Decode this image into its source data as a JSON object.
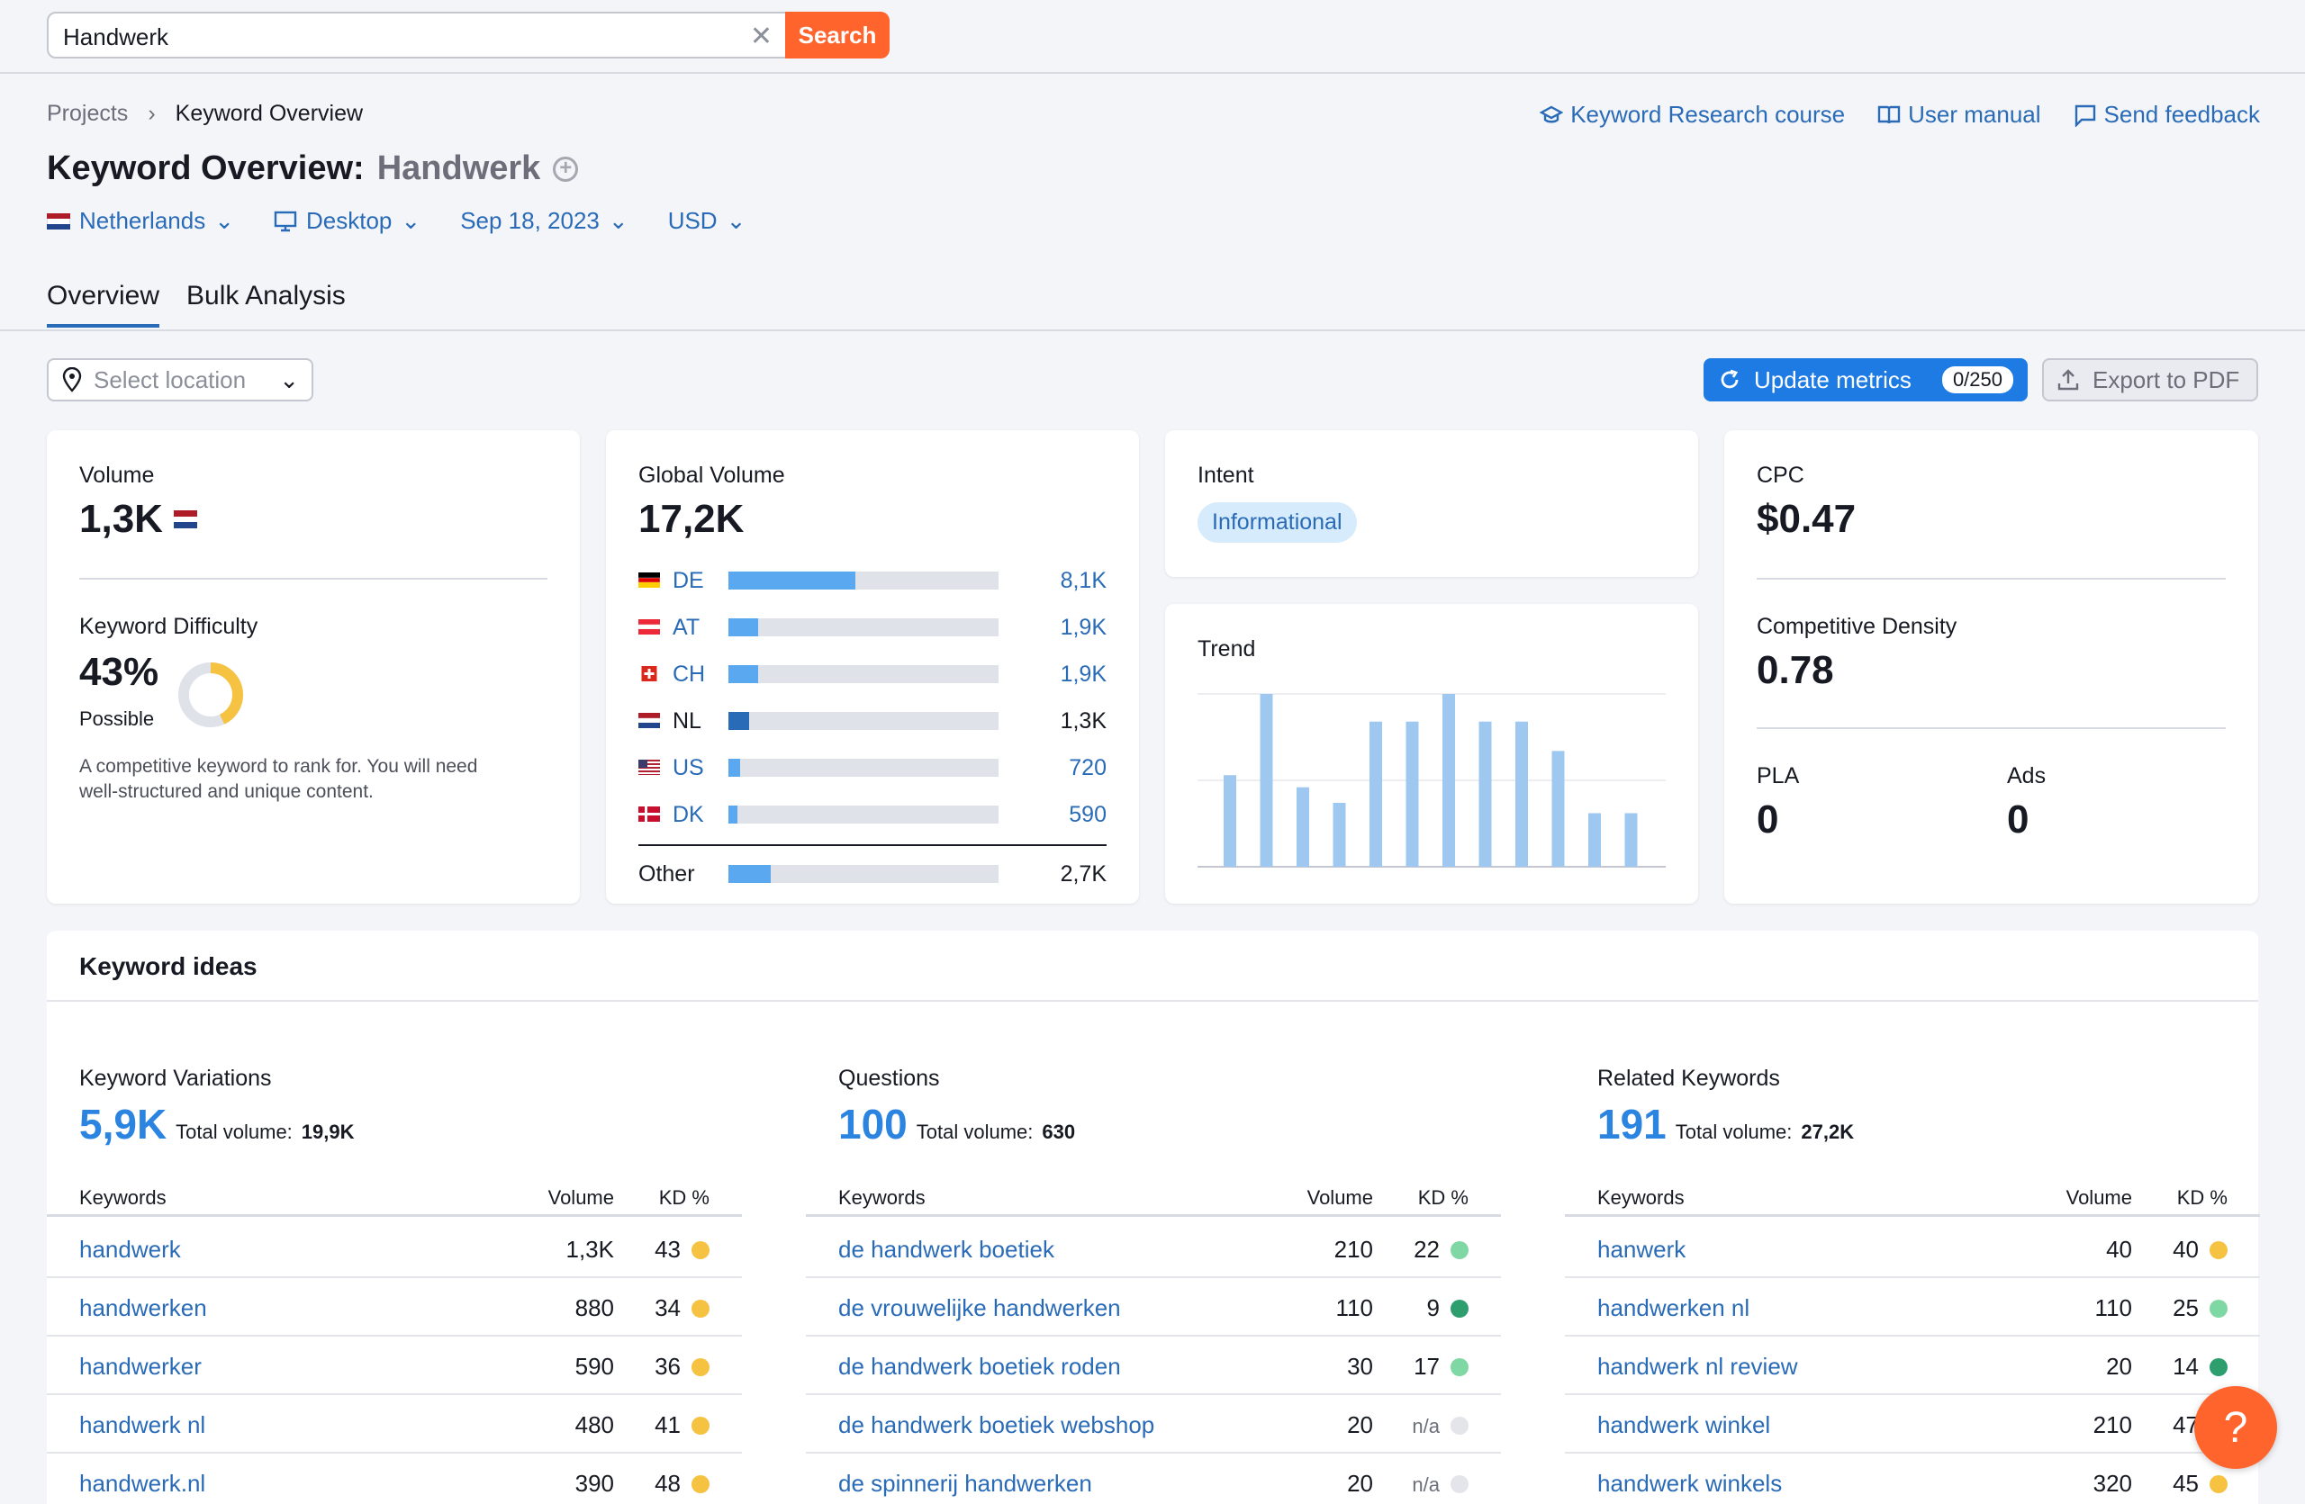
{
  "search": {
    "value": "Handwerk",
    "button": "Search"
  },
  "breadcrumb": {
    "root": "Projects",
    "current": "Keyword Overview"
  },
  "top_links": {
    "course": "Keyword Research course",
    "manual": "User manual",
    "feedback": "Send feedback"
  },
  "title": {
    "prefix": "Keyword Overview:",
    "keyword": "Handwerk"
  },
  "filters": {
    "country": "Netherlands",
    "device": "Desktop",
    "date": "Sep 18, 2023",
    "currency": "USD"
  },
  "tabs": [
    "Overview",
    "Bulk Analysis"
  ],
  "location": {
    "placeholder": "Select location"
  },
  "actions": {
    "update": "Update metrics",
    "update_quota": "0/250",
    "export": "Export to PDF"
  },
  "volume": {
    "label": "Volume",
    "value": "1,3K"
  },
  "difficulty": {
    "label": "Keyword Difficulty",
    "value": "43%",
    "level": "Possible",
    "percent": 43,
    "description_1": "A competitive keyword to rank for. You will need",
    "description_2": "well-structured and unique content."
  },
  "global_volume": {
    "label": "Global Volume",
    "value": "17,2K",
    "rows": [
      {
        "code": "DE",
        "value": "8,1K",
        "share": 0.47,
        "linked": true
      },
      {
        "code": "AT",
        "value": "1,9K",
        "share": 0.11,
        "linked": true
      },
      {
        "code": "CH",
        "value": "1,9K",
        "share": 0.11,
        "linked": true
      },
      {
        "code": "NL",
        "value": "1,3K",
        "share": 0.075,
        "linked": false
      },
      {
        "code": "US",
        "value": "720",
        "share": 0.042,
        "linked": true
      },
      {
        "code": "DK",
        "value": "590",
        "share": 0.034,
        "linked": true
      }
    ],
    "other": {
      "label": "Other",
      "value": "2,7K",
      "share": 0.157
    }
  },
  "intent": {
    "label": "Intent",
    "value": "Informational"
  },
  "trend": {
    "label": "Trend",
    "chart_data": {
      "type": "bar",
      "values": [
        0.53,
        1.0,
        0.46,
        0.37,
        0.84,
        0.84,
        1.0,
        0.84,
        0.84,
        0.67,
        0.31,
        0.31
      ]
    }
  },
  "cpc": {
    "label": "CPC",
    "value": "$0.47"
  },
  "density": {
    "label": "Competitive Density",
    "value": "0.78"
  },
  "pla": {
    "label": "PLA",
    "value": "0"
  },
  "ads": {
    "label": "Ads",
    "value": "0"
  },
  "ideas": {
    "title": "Keyword ideas",
    "headers": {
      "keywords": "Keywords",
      "volume": "Volume",
      "kd": "KD %"
    },
    "total_label": "Total volume:",
    "columns": [
      {
        "title": "Keyword Variations",
        "count": "5,9K",
        "total": "19,9K",
        "rows": [
          {
            "keyword": "handwerk",
            "volume": "1,3K",
            "kd": "43",
            "color": "#f5c242"
          },
          {
            "keyword": "handwerken",
            "volume": "880",
            "kd": "34",
            "color": "#f5c242"
          },
          {
            "keyword": "handwerker",
            "volume": "590",
            "kd": "36",
            "color": "#f5c242"
          },
          {
            "keyword": "handwerk nl",
            "volume": "480",
            "kd": "41",
            "color": "#f5c242"
          },
          {
            "keyword": "handwerk.nl",
            "volume": "390",
            "kd": "48",
            "color": "#f5c242"
          }
        ]
      },
      {
        "title": "Questions",
        "count": "100",
        "total": "630",
        "rows": [
          {
            "keyword": "de handwerk boetiek",
            "volume": "210",
            "kd": "22",
            "color": "#7fd8a4"
          },
          {
            "keyword": "de vrouwelijke handwerken",
            "volume": "110",
            "kd": "9",
            "color": "#2f9e6f"
          },
          {
            "keyword": "de handwerk boetiek roden",
            "volume": "30",
            "kd": "17",
            "color": "#7fd8a4"
          },
          {
            "keyword": "de handwerk boetiek webshop",
            "volume": "20",
            "kd": "n/a",
            "color": "#e3e5ea"
          },
          {
            "keyword": "de spinnerij handwerken",
            "volume": "20",
            "kd": "n/a",
            "color": "#e3e5ea"
          }
        ]
      },
      {
        "title": "Related Keywords",
        "count": "191",
        "total": "27,2K",
        "rows": [
          {
            "keyword": "hanwerk",
            "volume": "40",
            "kd": "40",
            "color": "#f5c242"
          },
          {
            "keyword": "handwerken nl",
            "volume": "110",
            "kd": "25",
            "color": "#7fd8a4"
          },
          {
            "keyword": "handwerk nl review",
            "volume": "20",
            "kd": "14",
            "color": "#2f9e6f"
          },
          {
            "keyword": "handwerk winkel",
            "volume": "210",
            "kd": "47",
            "color": "#f5c242"
          },
          {
            "keyword": "handwerk winkels",
            "volume": "320",
            "kd": "45",
            "color": "#f5c242"
          }
        ]
      }
    ]
  },
  "help": {
    "label": "?"
  }
}
